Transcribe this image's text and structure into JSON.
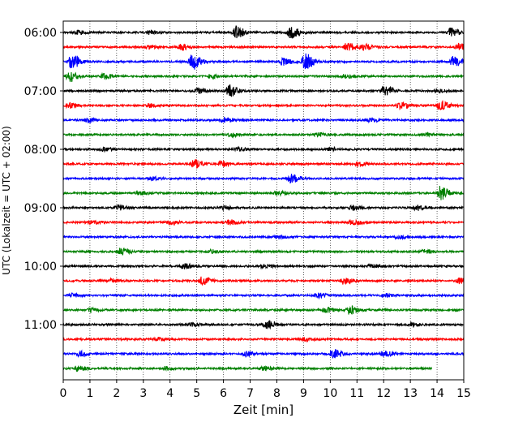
{
  "chart_data": {
    "type": "line",
    "title": "",
    "xlabel": "Zeit  [min]",
    "ylabel": "UTC (Lokalzeit = UTC + 02:00)",
    "xlim": [
      0,
      15
    ],
    "x_ticks": [
      "0",
      "1",
      "2",
      "3",
      "4",
      "5",
      "6",
      "7",
      "8",
      "9",
      "10",
      "11",
      "12",
      "13",
      "14",
      "15"
    ],
    "y_ticks": [
      {
        "label": "06:00",
        "row": 0
      },
      {
        "label": "07:00",
        "row": 4
      },
      {
        "label": "08:00",
        "row": 8
      },
      {
        "label": "09:00",
        "row": 12
      },
      {
        "label": "10:00",
        "row": 16
      },
      {
        "label": "11:00",
        "row": 20
      }
    ],
    "grid": "vertical dotted",
    "colors": [
      "#000000",
      "#ff0000",
      "#0000ff",
      "#008000"
    ],
    "traces": [
      {
        "row": 0,
        "color": "#000000",
        "end": 15,
        "events": [
          [
            6.45,
            7
          ],
          [
            8.5,
            8
          ],
          [
            14.5,
            5
          ],
          [
            0.5,
            2
          ],
          [
            3.2,
            2
          ]
        ]
      },
      {
        "row": 1,
        "color": "#ff0000",
        "end": 15,
        "events": [
          [
            4.4,
            3
          ],
          [
            10.6,
            5
          ],
          [
            11.2,
            4
          ],
          [
            14.8,
            4
          ],
          [
            3.2,
            2
          ]
        ]
      },
      {
        "row": 2,
        "color": "#0000ff",
        "end": 15,
        "events": [
          [
            0.3,
            8
          ],
          [
            4.8,
            10
          ],
          [
            9.05,
            10
          ],
          [
            14.6,
            6
          ],
          [
            8.2,
            4
          ]
        ]
      },
      {
        "row": 3,
        "color": "#008000",
        "end": 15,
        "events": [
          [
            0.2,
            6
          ],
          [
            1.5,
            3
          ],
          [
            5.5,
            2
          ],
          [
            10.5,
            2
          ]
        ]
      },
      {
        "row": 4,
        "color": "#000000",
        "end": 15,
        "events": [
          [
            6.2,
            7
          ],
          [
            12.0,
            7
          ],
          [
            5.0,
            3
          ],
          [
            14.0,
            2
          ]
        ]
      },
      {
        "row": 5,
        "color": "#ff0000",
        "end": 15,
        "events": [
          [
            14.1,
            6
          ],
          [
            12.6,
            4
          ],
          [
            0.2,
            3
          ],
          [
            3.2,
            2
          ]
        ]
      },
      {
        "row": 6,
        "color": "#0000ff",
        "end": 15,
        "events": [
          [
            0.9,
            3
          ],
          [
            6.0,
            3
          ],
          [
            11.5,
            2
          ]
        ]
      },
      {
        "row": 7,
        "color": "#008000",
        "end": 15,
        "events": [
          [
            6.3,
            2
          ],
          [
            9.5,
            2
          ],
          [
            13.5,
            2
          ]
        ]
      },
      {
        "row": 8,
        "color": "#000000",
        "end": 15,
        "events": [
          [
            1.5,
            2
          ],
          [
            6.5,
            2
          ],
          [
            10.0,
            2
          ]
        ]
      },
      {
        "row": 9,
        "color": "#ff0000",
        "end": 15,
        "events": [
          [
            4.9,
            5
          ],
          [
            5.9,
            3
          ],
          [
            11.0,
            2
          ]
        ]
      },
      {
        "row": 10,
        "color": "#0000ff",
        "end": 15,
        "events": [
          [
            8.5,
            5
          ],
          [
            3.3,
            2
          ]
        ]
      },
      {
        "row": 11,
        "color": "#008000",
        "end": 15,
        "events": [
          [
            14.1,
            8
          ],
          [
            2.8,
            2
          ],
          [
            8.0,
            2
          ]
        ]
      },
      {
        "row": 12,
        "color": "#000000",
        "end": 15,
        "events": [
          [
            2.0,
            3
          ],
          [
            6.0,
            2
          ],
          [
            10.8,
            3
          ],
          [
            13.2,
            3
          ]
        ]
      },
      {
        "row": 13,
        "color": "#ff0000",
        "end": 15,
        "events": [
          [
            6.2,
            3
          ],
          [
            10.8,
            3
          ],
          [
            1.0,
            2
          ],
          [
            4.0,
            2
          ]
        ]
      },
      {
        "row": 14,
        "color": "#0000ff",
        "end": 15,
        "events": [
          [
            8.0,
            2
          ],
          [
            12.5,
            2
          ]
        ]
      },
      {
        "row": 15,
        "color": "#008000",
        "end": 15,
        "events": [
          [
            2.1,
            4
          ],
          [
            5.5,
            2
          ],
          [
            13.5,
            2
          ]
        ]
      },
      {
        "row": 16,
        "color": "#000000",
        "end": 15,
        "events": [
          [
            4.5,
            3
          ],
          [
            7.5,
            2
          ],
          [
            11.5,
            2
          ]
        ]
      },
      {
        "row": 17,
        "color": "#ff0000",
        "end": 15,
        "events": [
          [
            5.2,
            5
          ],
          [
            10.5,
            4
          ],
          [
            14.8,
            3
          ],
          [
            1.8,
            2
          ]
        ]
      },
      {
        "row": 18,
        "color": "#0000ff",
        "end": 15,
        "events": [
          [
            9.5,
            3
          ],
          [
            12.0,
            2
          ],
          [
            0.3,
            2
          ]
        ]
      },
      {
        "row": 19,
        "color": "#008000",
        "end": 15,
        "events": [
          [
            10.7,
            5
          ],
          [
            1.0,
            2
          ],
          [
            9.8,
            3
          ]
        ]
      },
      {
        "row": 20,
        "color": "#000000",
        "end": 15,
        "events": [
          [
            7.6,
            5
          ],
          [
            13.0,
            3
          ],
          [
            4.8,
            2
          ]
        ]
      },
      {
        "row": 21,
        "color": "#ff0000",
        "end": 15,
        "events": [
          [
            3.5,
            2
          ],
          [
            9.0,
            2
          ]
        ]
      },
      {
        "row": 22,
        "color": "#0000ff",
        "end": 15,
        "events": [
          [
            10.1,
            5
          ],
          [
            12.0,
            4
          ],
          [
            0.6,
            3
          ],
          [
            6.8,
            3
          ]
        ]
      },
      {
        "row": 23,
        "color": "#008000",
        "end": 13.8,
        "events": [
          [
            0.5,
            3
          ],
          [
            3.8,
            2
          ],
          [
            7.5,
            2
          ]
        ]
      }
    ]
  }
}
